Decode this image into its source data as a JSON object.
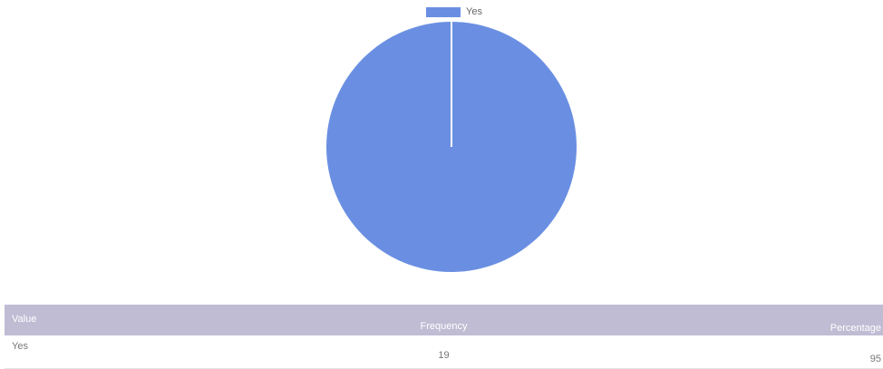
{
  "colors": {
    "slice": "#6a8fe2",
    "table_header": "#c0bcd4"
  },
  "chart_data": {
    "type": "pie",
    "title": "",
    "legend_position": "top",
    "slices": [
      {
        "label": "Yes",
        "value": 19,
        "color": "#6a8fe2"
      }
    ]
  },
  "table": {
    "headers": {
      "value": "Value",
      "frequency": "Frequency",
      "percentage": "Percentage"
    },
    "rows": [
      {
        "value": "Yes",
        "frequency": "19",
        "percentage": "95"
      }
    ]
  }
}
